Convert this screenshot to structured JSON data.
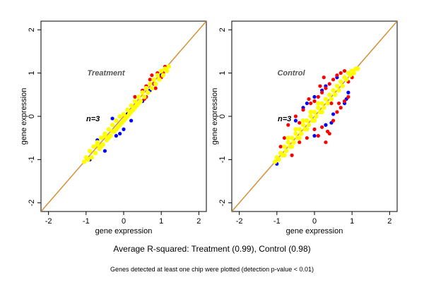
{
  "summary": "Average R-squared: Treatment (0.99), Control (0.98)",
  "footnote": "Genes detected at least one chip were plotted (detection p-value < 0.01)",
  "colors": {
    "identity_line": "#d4903a",
    "primary": "#ffff00",
    "secondary": "#ff0000",
    "tertiary": "#0000ff"
  },
  "chart_data": [
    {
      "type": "scatter",
      "title": "Treatment",
      "annotation": "n=3",
      "xlabel": "gene expression",
      "ylabel": "gene expression",
      "xlim": [
        -2.2,
        2.2
      ],
      "ylim": [
        -2.2,
        2.2
      ],
      "xticks": [
        -2,
        -1,
        0,
        1,
        2
      ],
      "yticks": [
        -2,
        -1,
        0,
        1,
        2
      ],
      "identity_line": true,
      "r_squared": 0.99,
      "series": [
        {
          "color": "blue",
          "points": [
            [
              -0.9,
              -1.0
            ],
            [
              -0.7,
              -0.55
            ],
            [
              -0.5,
              -0.8
            ],
            [
              -0.3,
              -0.05
            ],
            [
              -0.1,
              -0.4
            ],
            [
              0.0,
              -0.3
            ],
            [
              0.2,
              -0.1
            ],
            [
              0.5,
              0.35
            ],
            [
              0.7,
              0.6
            ],
            [
              1.0,
              0.95
            ],
            [
              -0.2,
              -0.45
            ],
            [
              0.1,
              0.05
            ]
          ]
        },
        {
          "color": "red",
          "points": [
            [
              0.3,
              0.45
            ],
            [
              0.5,
              0.6
            ],
            [
              0.6,
              0.7
            ],
            [
              0.7,
              0.85
            ],
            [
              0.8,
              0.75
            ],
            [
              0.9,
              1.0
            ],
            [
              1.0,
              0.9
            ],
            [
              1.1,
              1.15
            ],
            [
              0.4,
              0.3
            ],
            [
              0.6,
              0.45
            ],
            [
              0.85,
              0.65
            ],
            [
              1.05,
              1.0
            ],
            [
              0.75,
              0.95
            ],
            [
              0.55,
              0.4
            ]
          ]
        },
        {
          "color": "yellow",
          "points": [
            [
              -1.05,
              -1.05
            ],
            [
              -1.0,
              -0.95
            ],
            [
              -0.95,
              -1.0
            ],
            [
              -0.9,
              -0.8
            ],
            [
              -0.85,
              -0.95
            ],
            [
              -0.8,
              -0.7
            ],
            [
              -0.75,
              -0.85
            ],
            [
              -0.7,
              -0.65
            ],
            [
              -0.65,
              -0.75
            ],
            [
              -0.6,
              -0.5
            ],
            [
              -0.55,
              -0.65
            ],
            [
              -0.5,
              -0.45
            ],
            [
              -0.45,
              -0.55
            ],
            [
              -0.4,
              -0.3
            ],
            [
              -0.35,
              -0.45
            ],
            [
              -0.3,
              -0.2
            ],
            [
              -0.25,
              -0.35
            ],
            [
              -0.2,
              -0.1
            ],
            [
              -0.15,
              -0.25
            ],
            [
              -0.1,
              0.0
            ],
            [
              -0.05,
              -0.15
            ],
            [
              0.0,
              0.05
            ],
            [
              0.05,
              -0.05
            ],
            [
              0.1,
              0.15
            ],
            [
              0.15,
              0.05
            ],
            [
              0.2,
              0.25
            ],
            [
              0.25,
              0.15
            ],
            [
              0.3,
              0.35
            ],
            [
              0.35,
              0.25
            ],
            [
              0.4,
              0.45
            ],
            [
              0.45,
              0.35
            ],
            [
              0.5,
              0.55
            ],
            [
              0.55,
              0.45
            ],
            [
              0.6,
              0.65
            ],
            [
              0.65,
              0.55
            ],
            [
              0.7,
              0.75
            ],
            [
              0.75,
              0.65
            ],
            [
              0.8,
              0.85
            ],
            [
              0.85,
              0.75
            ],
            [
              0.9,
              0.95
            ],
            [
              0.95,
              0.85
            ],
            [
              1.0,
              1.05
            ],
            [
              1.05,
              0.95
            ],
            [
              1.1,
              1.1
            ],
            [
              1.15,
              1.05
            ],
            [
              1.2,
              1.15
            ],
            [
              -0.6,
              -0.7
            ],
            [
              -0.4,
              -0.5
            ],
            [
              -0.2,
              -0.3
            ],
            [
              0.0,
              -0.1
            ],
            [
              0.2,
              0.1
            ],
            [
              0.4,
              0.3
            ],
            [
              -0.7,
              -0.6
            ],
            [
              -0.5,
              -0.4
            ],
            [
              -0.3,
              -0.35
            ],
            [
              -0.1,
              -0.2
            ],
            [
              0.1,
              0.0
            ],
            [
              0.3,
              0.2
            ]
          ]
        }
      ]
    },
    {
      "type": "scatter",
      "title": "Control",
      "annotation": "n=3",
      "xlabel": "gene expression",
      "ylabel": "gene expression",
      "xlim": [
        -2.2,
        2.2
      ],
      "ylim": [
        -2.2,
        2.2
      ],
      "xticks": [
        -2,
        -1,
        0,
        1,
        2
      ],
      "yticks": [
        -2,
        -1,
        0,
        1,
        2
      ],
      "identity_line": true,
      "r_squared": 0.98,
      "series": [
        {
          "color": "blue",
          "points": [
            [
              -1.0,
              -1.1
            ],
            [
              -0.5,
              -0.1
            ],
            [
              -0.3,
              0.2
            ],
            [
              0.0,
              0.45
            ],
            [
              0.2,
              0.6
            ],
            [
              0.3,
              -0.2
            ],
            [
              0.5,
              0.05
            ],
            [
              0.6,
              0.9
            ],
            [
              0.8,
              0.3
            ],
            [
              0.9,
              0.55
            ],
            [
              0.3,
              0.7
            ],
            [
              0.0,
              -0.45
            ],
            [
              -0.2,
              0.3
            ],
            [
              0.45,
              -0.15
            ],
            [
              0.85,
              0.4
            ]
          ]
        },
        {
          "color": "red",
          "points": [
            [
              -0.8,
              -0.5
            ],
            [
              -0.7,
              -0.2
            ],
            [
              -0.6,
              -0.9
            ],
            [
              -0.5,
              0.0
            ],
            [
              -0.4,
              -0.6
            ],
            [
              -0.3,
              0.15
            ],
            [
              -0.2,
              -0.5
            ],
            [
              -0.1,
              0.3
            ],
            [
              0.0,
              -0.3
            ],
            [
              0.0,
              0.35
            ],
            [
              0.1,
              0.45
            ],
            [
              0.1,
              -0.45
            ],
            [
              0.2,
              0.55
            ],
            [
              0.2,
              -0.25
            ],
            [
              0.3,
              0.65
            ],
            [
              0.3,
              -0.6
            ],
            [
              0.4,
              0.75
            ],
            [
              0.4,
              -0.4
            ],
            [
              0.5,
              0.85
            ],
            [
              0.5,
              -0.1
            ],
            [
              0.6,
              0.95
            ],
            [
              0.6,
              0.1
            ],
            [
              0.7,
              1.0
            ],
            [
              0.7,
              0.2
            ],
            [
              0.8,
              1.05
            ],
            [
              0.8,
              0.35
            ],
            [
              0.9,
              0.8
            ],
            [
              0.9,
              0.45
            ],
            [
              1.0,
              0.9
            ],
            [
              -0.9,
              -0.7
            ],
            [
              -0.4,
              -0.15
            ],
            [
              0.15,
              0.7
            ],
            [
              0.35,
              -0.35
            ],
            [
              0.55,
              0.5
            ],
            [
              0.65,
              0.3
            ],
            [
              0.25,
              0.9
            ],
            [
              -0.15,
              0.4
            ],
            [
              0.45,
              0.3
            ]
          ]
        },
        {
          "color": "yellow",
          "points": [
            [
              -1.05,
              -1.05
            ],
            [
              -1.0,
              -0.95
            ],
            [
              -0.95,
              -1.0
            ],
            [
              -0.9,
              -0.85
            ],
            [
              -0.85,
              -0.9
            ],
            [
              -0.8,
              -0.7
            ],
            [
              -0.75,
              -0.8
            ],
            [
              -0.7,
              -0.6
            ],
            [
              -0.65,
              -0.7
            ],
            [
              -0.6,
              -0.5
            ],
            [
              -0.55,
              -0.6
            ],
            [
              -0.5,
              -0.4
            ],
            [
              -0.45,
              -0.5
            ],
            [
              -0.4,
              -0.3
            ],
            [
              -0.35,
              -0.4
            ],
            [
              -0.3,
              -0.2
            ],
            [
              -0.25,
              -0.3
            ],
            [
              -0.2,
              -0.1
            ],
            [
              -0.15,
              -0.2
            ],
            [
              -0.1,
              0.0
            ],
            [
              -0.05,
              -0.1
            ],
            [
              0.0,
              0.1
            ],
            [
              0.05,
              0.0
            ],
            [
              0.1,
              0.2
            ],
            [
              0.15,
              0.1
            ],
            [
              0.2,
              0.3
            ],
            [
              0.25,
              0.2
            ],
            [
              0.3,
              0.4
            ],
            [
              0.35,
              0.3
            ],
            [
              0.4,
              0.5
            ],
            [
              0.45,
              0.4
            ],
            [
              0.5,
              0.6
            ],
            [
              0.55,
              0.5
            ],
            [
              0.6,
              0.7
            ],
            [
              0.65,
              0.6
            ],
            [
              0.7,
              0.8
            ],
            [
              0.75,
              0.7
            ],
            [
              0.8,
              0.9
            ],
            [
              0.85,
              0.85
            ],
            [
              0.9,
              1.0
            ],
            [
              0.95,
              0.95
            ],
            [
              1.0,
              1.05
            ],
            [
              1.05,
              1.0
            ],
            [
              1.1,
              1.1
            ],
            [
              1.15,
              1.1
            ],
            [
              -0.8,
              -0.9
            ],
            [
              -0.6,
              -0.7
            ],
            [
              -0.4,
              -0.5
            ],
            [
              -0.2,
              -0.3
            ],
            [
              0.0,
              -0.1
            ],
            [
              0.2,
              0.1
            ],
            [
              -0.7,
              -0.5
            ],
            [
              -0.5,
              -0.3
            ],
            [
              -0.3,
              -0.1
            ],
            [
              -0.1,
              0.1
            ],
            [
              0.1,
              0.3
            ]
          ]
        }
      ]
    }
  ]
}
